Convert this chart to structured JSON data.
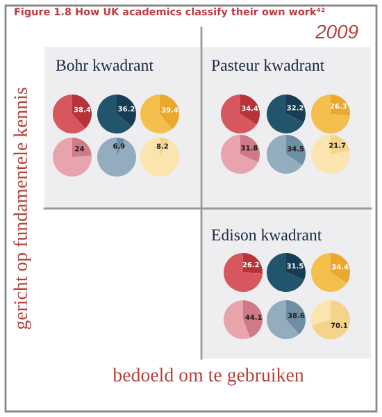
{
  "chart_data": [
    {
      "type": "other",
      "title": "Figure 1.8 How UK academics classify their own work⁴²",
      "annotations": [
        "2009",
        "Bohr kwadrant",
        "Pasteur kwadrant",
        "Edison kwadrant",
        "gericht op fundamentele kennis",
        "bedoeld om te gebruiken"
      ]
    },
    {
      "type": "pie",
      "categories": [
        null,
        null
      ],
      "values": [
        38.4,
        61.6
      ],
      "colors": [
        "#b8323a",
        "#d6575e"
      ],
      "value_labels": [
        "38.4",
        null
      ]
    },
    {
      "type": "pie",
      "categories": [
        null,
        null
      ],
      "values": [
        36.2,
        63.8
      ],
      "colors": [
        "#163d54",
        "#23546e"
      ],
      "value_labels": [
        "36.2",
        null
      ]
    },
    {
      "type": "pie",
      "categories": [
        null,
        null
      ],
      "values": [
        39.4,
        60.6
      ],
      "colors": [
        "#eaa82e",
        "#f4bf4c"
      ],
      "value_labels": [
        "39.4",
        null
      ]
    },
    {
      "type": "pie",
      "categories": [
        null,
        null
      ],
      "values": [
        24,
        76
      ],
      "colors": [
        "#cf7a86",
        "#e8a3ad"
      ],
      "value_labels": [
        "24",
        null
      ]
    },
    {
      "type": "pie",
      "categories": [
        null,
        null
      ],
      "values": [
        6.9,
        93.1
      ],
      "colors": [
        "#6d8ea3",
        "#93adbe"
      ],
      "value_labels": [
        "6.9",
        null
      ]
    },
    {
      "type": "pie",
      "categories": [
        null,
        null
      ],
      "values": [
        8.2,
        91.8
      ],
      "colors": [
        "#f3d48a",
        "#fbe4ae"
      ],
      "value_labels": [
        "8.2",
        null
      ]
    },
    {
      "type": "pie",
      "categories": [
        null,
        null
      ],
      "values": [
        34.4,
        65.6
      ],
      "colors": [
        "#b8323a",
        "#d6575e"
      ],
      "value_labels": [
        "34.4",
        null
      ]
    },
    {
      "type": "pie",
      "categories": [
        null,
        null
      ],
      "values": [
        32.2,
        67.8
      ],
      "colors": [
        "#163d54",
        "#23546e"
      ],
      "value_labels": [
        "32.2",
        null
      ]
    },
    {
      "type": "pie",
      "categories": [
        null,
        null
      ],
      "values": [
        26.3,
        73.7
      ],
      "colors": [
        "#eaa82e",
        "#f4bf4c"
      ],
      "value_labels": [
        "26.3",
        null
      ]
    },
    {
      "type": "pie",
      "categories": [
        null,
        null
      ],
      "values": [
        31.8,
        68.2
      ],
      "colors": [
        "#cf7a86",
        "#e8a3ad"
      ],
      "value_labels": [
        "31.8",
        null
      ]
    },
    {
      "type": "pie",
      "categories": [
        null,
        null
      ],
      "values": [
        34.5,
        65.5
      ],
      "colors": [
        "#6d8ea3",
        "#93adbe"
      ],
      "value_labels": [
        "34.5",
        null
      ]
    },
    {
      "type": "pie",
      "categories": [
        null,
        null
      ],
      "values": [
        21.7,
        78.3
      ],
      "colors": [
        "#f3d48a",
        "#fbe4ae"
      ],
      "value_labels": [
        "21.7",
        null
      ]
    },
    {
      "type": "pie",
      "categories": [
        null,
        null
      ],
      "values": [
        26.2,
        73.8
      ],
      "colors": [
        "#b8323a",
        "#d6575e"
      ],
      "value_labels": [
        "26.2",
        null
      ]
    },
    {
      "type": "pie",
      "categories": [
        null,
        null
      ],
      "values": [
        31.5,
        68.5
      ],
      "colors": [
        "#163d54",
        "#23546e"
      ],
      "value_labels": [
        "31.5",
        null
      ]
    },
    {
      "type": "pie",
      "categories": [
        null,
        null
      ],
      "values": [
        34.4,
        65.6
      ],
      "colors": [
        "#eaa82e",
        "#f4bf4c"
      ],
      "value_labels": [
        "34.4",
        null
      ]
    },
    {
      "type": "pie",
      "categories": [
        null,
        null
      ],
      "values": [
        44.1,
        55.9
      ],
      "colors": [
        "#cf7a86",
        "#e8a3ad"
      ],
      "value_labels": [
        "44.1",
        null
      ]
    },
    {
      "type": "pie",
      "categories": [
        null,
        null
      ],
      "values": [
        38.6,
        61.4
      ],
      "colors": [
        "#6d8ea3",
        "#93adbe"
      ],
      "value_labels": [
        "38.6",
        null
      ]
    },
    {
      "type": "pie",
      "categories": [
        null,
        null
      ],
      "values": [
        70.1,
        29.9
      ],
      "colors": [
        "#f3d48a",
        "#fbe4ae"
      ],
      "value_labels": [
        "70.1",
        null
      ]
    }
  ]
}
